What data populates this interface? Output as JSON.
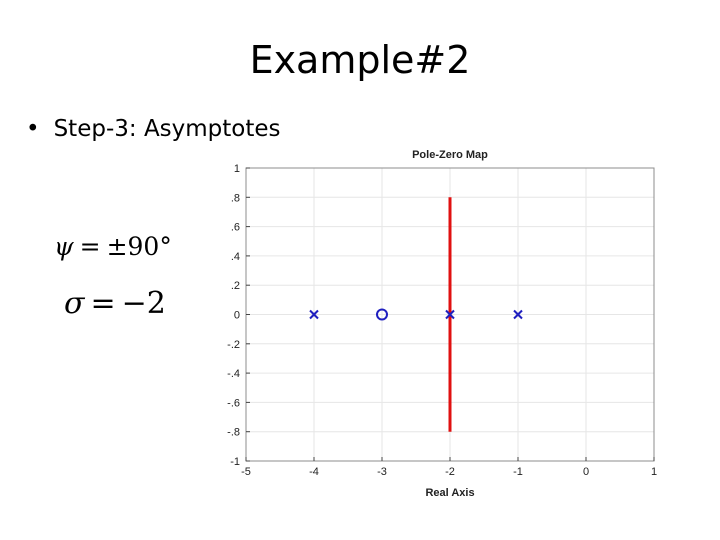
{
  "slide": {
    "title": "Example#2",
    "bullet_symbol": "•",
    "bullet_text": "Step-3: Asymptotes"
  },
  "equations": {
    "psi": {
      "symbol": "ψ",
      "operator": "=",
      "value": "±90°"
    },
    "sigma": {
      "symbol": "σ",
      "operator": "=",
      "value": "−2"
    }
  },
  "chart_data": {
    "type": "scatter",
    "title": "Pole-Zero Map",
    "xlabel": "Real Axis",
    "ylabel": "",
    "xlim": [
      -5,
      1
    ],
    "ylim": [
      -1,
      1
    ],
    "xticks": [
      -5,
      -4,
      -3,
      -2,
      -1,
      0,
      1
    ],
    "yticks": [
      -1,
      -0.8,
      -0.6,
      -0.4,
      -0.2,
      0,
      0.2,
      0.4,
      0.6,
      0.8,
      1
    ],
    "grid": true,
    "poles": [
      {
        "x": -4,
        "y": 0
      },
      {
        "x": -2,
        "y": 0
      },
      {
        "x": -1,
        "y": 0
      }
    ],
    "zeros": [
      {
        "x": -3,
        "y": 0
      }
    ],
    "asymptote": {
      "x": -2,
      "y_from": -0.8,
      "y_to": 0.8
    },
    "colors": {
      "marker": "#1f1fbf",
      "asymptote": "#e01010",
      "grid": "#e6e6e6",
      "axis": "#000000"
    }
  }
}
